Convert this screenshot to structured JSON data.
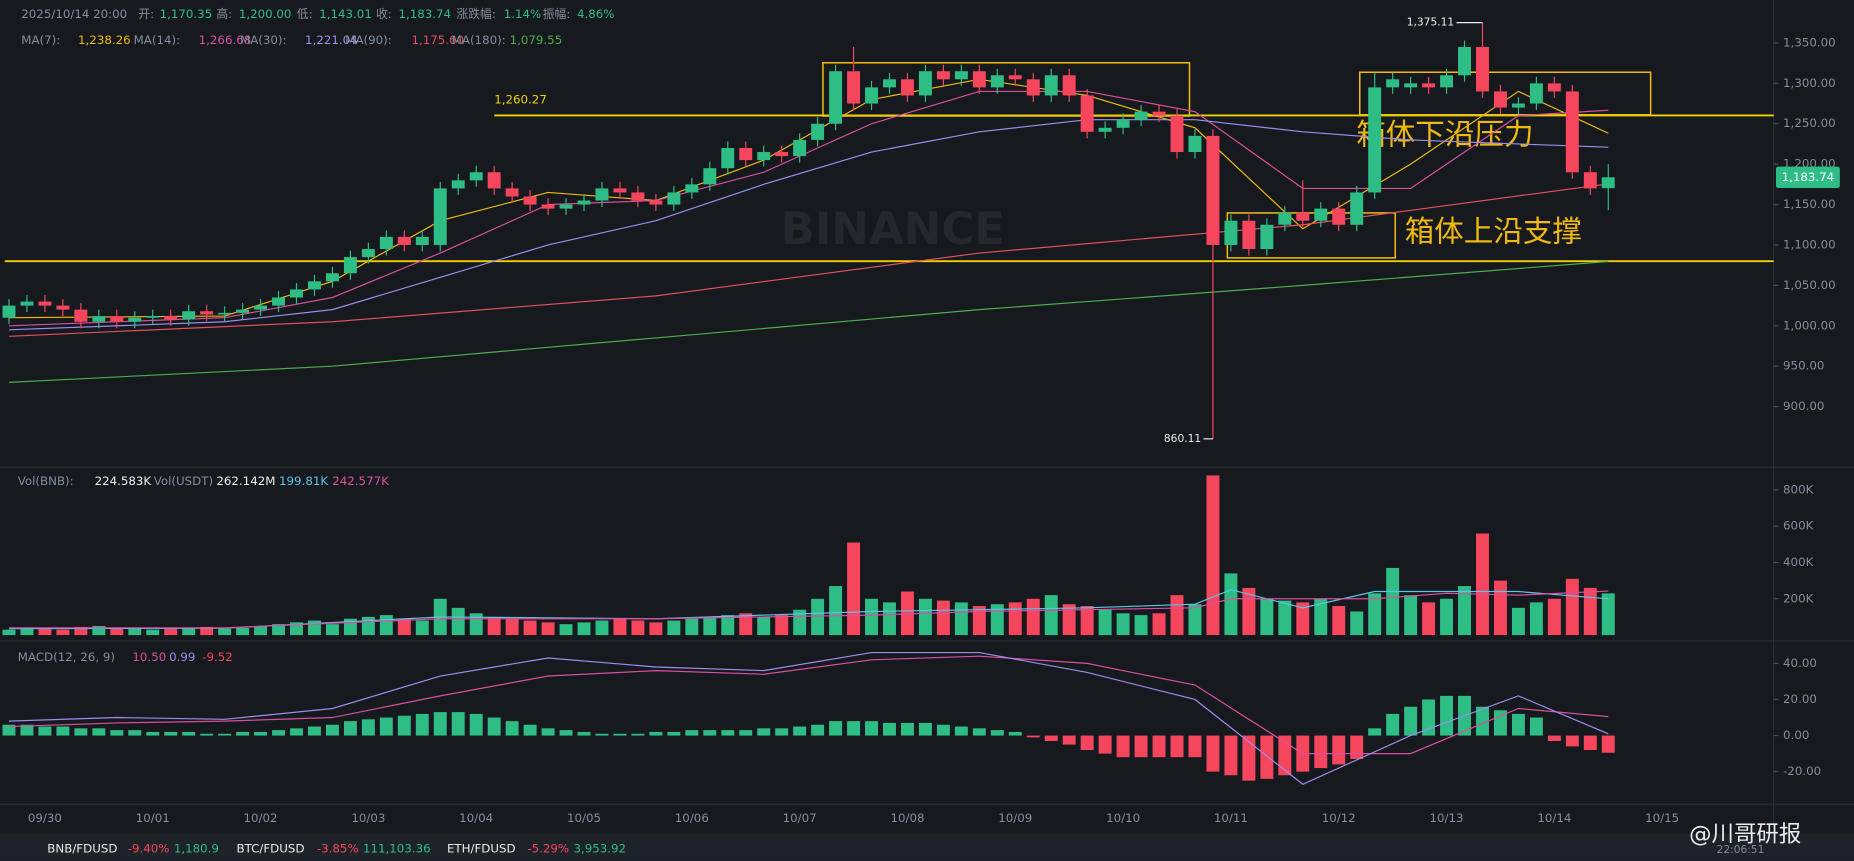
{
  "chart_data": {
    "type": "candlestick",
    "header": {
      "time": "2025/10/14 20:00",
      "open_label": "开:",
      "open": "1,170.35",
      "high_label": "高:",
      "high": "1,200.00",
      "low_label": "低:",
      "low": "1,143.01",
      "close_label": "收:",
      "close": "1,183.74",
      "change_label": "涨跌幅:",
      "change": "1.14%",
      "amp_label": "振幅:",
      "amp": "4.86%"
    },
    "up_color": "#2ebd85",
    "down_color": "#f6465d",
    "xlim": [
      -0.5,
      98.2
    ],
    "xticks": [
      {
        "value": 2,
        "label": "09/30"
      },
      {
        "value": 8,
        "label": "10/01"
      },
      {
        "value": 14,
        "label": "10/02"
      },
      {
        "value": 20,
        "label": "10/03"
      },
      {
        "value": 26,
        "label": "10/04"
      },
      {
        "value": 32,
        "label": "10/05"
      },
      {
        "value": 38,
        "label": "10/06"
      },
      {
        "value": 44,
        "label": "10/07"
      },
      {
        "value": 50,
        "label": "10/08"
      },
      {
        "value": 56,
        "label": "10/09"
      },
      {
        "value": 62,
        "label": "10/10"
      },
      {
        "value": 68,
        "label": "10/11"
      },
      {
        "value": 74,
        "label": "10/12"
      },
      {
        "value": 80,
        "label": "10/13"
      },
      {
        "value": 86,
        "label": "10/14"
      },
      {
        "value": 92,
        "label": "10/15"
      }
    ],
    "ylim": [
      828,
      1403
    ],
    "yticks": [
      {
        "value": 900,
        "label": "900.00"
      },
      {
        "value": 950,
        "label": "950.00"
      },
      {
        "value": 1000,
        "label": "1,000.00"
      },
      {
        "value": 1050,
        "label": "1,050.00"
      },
      {
        "value": 1100,
        "label": "1,100.00"
      },
      {
        "value": 1150,
        "label": "1,150.00"
      },
      {
        "value": 1200,
        "label": "1,200.00"
      },
      {
        "value": 1250,
        "label": "1,250.00"
      },
      {
        "value": 1300,
        "label": "1,300.00"
      },
      {
        "value": 1350,
        "label": "1,350.00"
      }
    ],
    "open": [
      1010,
      1025,
      1030,
      1025,
      1020,
      1005,
      1012,
      1005,
      1010,
      1012,
      1008,
      1018,
      1014,
      1016,
      1020,
      1025,
      1035,
      1045,
      1055,
      1065,
      1085,
      1095,
      1110,
      1100,
      1100,
      1170,
      1180,
      1190,
      1170,
      1160,
      1150,
      1145,
      1150,
      1155,
      1170,
      1165,
      1155,
      1150,
      1165,
      1175,
      1195,
      1220,
      1205,
      1215,
      1210,
      1230,
      1250,
      1315,
      1275,
      1295,
      1305,
      1285,
      1315,
      1305,
      1315,
      1295,
      1310,
      1305,
      1285,
      1310,
      1285,
      1240,
      1245,
      1255,
      1265,
      1260,
      1215,
      1235,
      1100,
      1130,
      1095,
      1125,
      1140,
      1130,
      1145,
      1125,
      1165,
      1295,
      1295,
      1300,
      1295,
      1310,
      1345,
      1290,
      1270,
      1275,
      1300,
      1290,
      1190,
      1170.35
    ],
    "high": [
      1033,
      1038,
      1038,
      1033,
      1028,
      1020,
      1020,
      1018,
      1020,
      1020,
      1026,
      1026,
      1024,
      1028,
      1033,
      1043,
      1053,
      1063,
      1073,
      1093,
      1103,
      1118,
      1118,
      1118,
      1178,
      1188,
      1198,
      1198,
      1178,
      1168,
      1158,
      1158,
      1163,
      1178,
      1178,
      1173,
      1163,
      1173,
      1183,
      1203,
      1228,
      1228,
      1223,
      1223,
      1238,
      1258,
      1323,
      1345,
      1303,
      1313,
      1313,
      1323,
      1323,
      1323,
      1323,
      1318,
      1318,
      1313,
      1318,
      1318,
      1293,
      1253,
      1263,
      1273,
      1273,
      1268,
      1243,
      1243,
      1138,
      1138,
      1133,
      1148,
      1180,
      1153,
      1153,
      1173,
      1313,
      1313,
      1308,
      1308,
      1318,
      1353,
      1375.11,
      1298,
      1283,
      1308,
      1308,
      1298,
      1198,
      1200
    ],
    "low": [
      1002,
      1017,
      1017,
      1012,
      997,
      997,
      997,
      997,
      1002,
      1000,
      1000,
      1006,
      1006,
      1008,
      1012,
      1017,
      1027,
      1037,
      1047,
      1057,
      1077,
      1087,
      1092,
      1092,
      1092,
      1162,
      1172,
      1162,
      1152,
      1142,
      1137,
      1137,
      1142,
      1147,
      1157,
      1147,
      1142,
      1142,
      1157,
      1167,
      1187,
      1197,
      1197,
      1202,
      1202,
      1222,
      1242,
      1267,
      1267,
      1287,
      1277,
      1277,
      1297,
      1297,
      1287,
      1287,
      1297,
      1277,
      1277,
      1277,
      1232,
      1232,
      1237,
      1247,
      1252,
      1207,
      1207,
      860.11,
      1092,
      1087,
      1087,
      1117,
      1122,
      1122,
      1117,
      1117,
      1157,
      1287,
      1287,
      1287,
      1287,
      1302,
      1282,
      1262,
      1262,
      1267,
      1282,
      1182,
      1162,
      1143.01
    ],
    "close": [
      1025,
      1030,
      1025,
      1020,
      1005,
      1012,
      1005,
      1010,
      1012,
      1008,
      1018,
      1014,
      1016,
      1020,
      1025,
      1035,
      1045,
      1055,
      1065,
      1085,
      1095,
      1110,
      1100,
      1110,
      1170,
      1180,
      1190,
      1170,
      1160,
      1150,
      1145,
      1150,
      1155,
      1170,
      1165,
      1155,
      1150,
      1165,
      1175,
      1195,
      1220,
      1205,
      1215,
      1210,
      1230,
      1250,
      1315,
      1275,
      1295,
      1305,
      1285,
      1315,
      1305,
      1315,
      1295,
      1310,
      1305,
      1285,
      1310,
      1285,
      1240,
      1245,
      1255,
      1265,
      1260,
      1215,
      1235,
      1100,
      1130,
      1095,
      1125,
      1140,
      1130,
      1145,
      1125,
      1165,
      1295,
      1305,
      1300,
      1295,
      1310,
      1345,
      1290,
      1270,
      1275,
      1300,
      1290,
      1190,
      1170,
      1183.74
    ],
    "high_label": "1,375.11",
    "low_label": "860.11",
    "last_label": "1,183.74",
    "ma": [
      {
        "name": "MA(7):",
        "color": "#f0b90b",
        "last_label": "1,238.26",
        "x": [
          0,
          12,
          18,
          24,
          30,
          36,
          42,
          48,
          54,
          60,
          66,
          72,
          78,
          84,
          89
        ],
        "values": [
          1010,
          1012,
          1055,
          1130,
          1165,
          1155,
          1205,
          1280,
          1305,
          1285,
          1245,
          1120,
          1200,
          1290,
          1238.26
        ]
      },
      {
        "name": "MA(14):",
        "color": "#d9509e",
        "last_label": "1,266.68",
        "x": [
          0,
          12,
          18,
          24,
          30,
          36,
          42,
          48,
          54,
          60,
          66,
          72,
          78,
          84,
          89
        ],
        "values": [
          1000,
          1010,
          1035,
          1090,
          1150,
          1155,
          1190,
          1250,
          1290,
          1290,
          1265,
          1170,
          1170,
          1260,
          1266.68
        ]
      },
      {
        "name": "MA(30):",
        "color": "#9d8cf0",
        "last_label": "1,221.04",
        "x": [
          0,
          12,
          18,
          24,
          30,
          36,
          42,
          48,
          54,
          60,
          66,
          72,
          78,
          84,
          89
        ],
        "values": [
          995,
          1005,
          1020,
          1060,
          1100,
          1130,
          1175,
          1215,
          1240,
          1255,
          1255,
          1240,
          1230,
          1225,
          1221.04
        ]
      },
      {
        "name": "MA(90):",
        "color": "#e0505e",
        "last_label": "1,175.60",
        "x": [
          0,
          18,
          36,
          54,
          72,
          89
        ],
        "values": [
          987,
          1005,
          1037,
          1090,
          1125,
          1175.6
        ]
      },
      {
        "name": "MA(180):",
        "color": "#4cae4f",
        "last_label": "1,079.55",
        "x": [
          0,
          18,
          36,
          54,
          72,
          89
        ],
        "values": [
          930,
          950,
          985,
          1020,
          1050,
          1079.55
        ]
      }
    ],
    "hlines": [
      {
        "value": 1260.27,
        "label": "1,260.27"
      },
      {
        "value": 1080
      }
    ],
    "annotations": [
      "箱体下沿压力",
      "箱体上沿支撑"
    ],
    "watermark": "BINANCE",
    "volume": {
      "legend": [
        "Vol(BNB):",
        "224.583K",
        "Vol(USDT)",
        "262.142M"
      ],
      "ylim": [
        0,
        880
      ],
      "yticks": [
        {
          "value": 200,
          "label": "200K"
        },
        {
          "value": 400,
          "label": "400K"
        },
        {
          "value": 600,
          "label": "600K"
        },
        {
          "value": 800,
          "label": "800K"
        }
      ],
      "values": [
        30,
        40,
        35,
        30,
        45,
        50,
        40,
        35,
        30,
        35,
        40,
        45,
        35,
        40,
        50,
        60,
        70,
        80,
        60,
        90,
        100,
        110,
        90,
        80,
        200,
        150,
        120,
        100,
        90,
        80,
        70,
        60,
        70,
        80,
        90,
        80,
        70,
        80,
        90,
        100,
        110,
        120,
        100,
        110,
        140,
        200,
        270,
        510,
        200,
        180,
        240,
        200,
        190,
        180,
        160,
        170,
        180,
        200,
        220,
        170,
        160,
        140,
        120,
        110,
        120,
        220,
        170,
        880,
        340,
        260,
        200,
        190,
        180,
        200,
        160,
        130,
        230,
        370,
        220,
        180,
        200,
        270,
        560,
        300,
        150,
        180,
        200,
        310,
        260,
        230
      ],
      "ma": [
        {
          "color": "#5fc4e8",
          "last_label": "199.81K",
          "x": [
            0,
            12,
            24,
            36,
            48,
            54,
            60,
            66,
            68,
            72,
            76,
            80,
            84,
            89
          ],
          "values": [
            35,
            38,
            100,
            90,
            130,
            140,
            150,
            170,
            250,
            150,
            240,
            240,
            240,
            199.81
          ]
        },
        {
          "color": "#d9509e",
          "last_label": "242.577K",
          "x": [
            0,
            12,
            24,
            36,
            48,
            54,
            60,
            66,
            68,
            72,
            76,
            80,
            84,
            89
          ],
          "values": [
            40,
            40,
            90,
            90,
            110,
            130,
            140,
            150,
            200,
            200,
            200,
            230,
            220,
            242.577
          ]
        }
      ]
    },
    "macd": {
      "name": "MACD(12, 26, 9)",
      "ylim": [
        -36.7,
        48.5
      ],
      "yticks": [
        {
          "value": -20,
          "label": "-20.00"
        },
        {
          "value": 0,
          "label": "0.00"
        },
        {
          "value": 20,
          "label": "20.00"
        },
        {
          "value": 40,
          "label": "40.00"
        }
      ],
      "hist": [
        6,
        6,
        5,
        5,
        4,
        4,
        3,
        3,
        2,
        2,
        2,
        1,
        1,
        2,
        2,
        3,
        4,
        5,
        6,
        8,
        9,
        10,
        11,
        12,
        13,
        13,
        12,
        10,
        8,
        6,
        4,
        3,
        2,
        1,
        1,
        1,
        2,
        2,
        3,
        3,
        3,
        3,
        4,
        4,
        5,
        6,
        8,
        8,
        8,
        7,
        7,
        7,
        6,
        5,
        4,
        3,
        2,
        -1,
        -3,
        -5,
        -8,
        -10,
        -12,
        -12,
        -12,
        -12,
        -12,
        -20,
        -22,
        -25,
        -24,
        -22,
        -20,
        -18,
        -16,
        -13,
        4,
        12,
        16,
        20,
        22,
        22,
        16,
        14,
        12,
        10,
        -3,
        -6,
        -8,
        -9.52
      ],
      "hist_label": "-9.52",
      "lines": [
        {
          "color": "#d9509e",
          "last_label": "10.50",
          "x": [
            0,
            6,
            12,
            18,
            24,
            30,
            36,
            42,
            48,
            54,
            60,
            66,
            72,
            78,
            84,
            89
          ],
          "values": [
            5,
            7,
            8,
            10,
            22,
            33,
            36,
            34,
            42,
            44,
            40,
            28,
            -10,
            -10,
            15,
            10.5
          ]
        },
        {
          "color": "#9d8cf0",
          "last_label": "0.99",
          "x": [
            0,
            6,
            12,
            18,
            24,
            30,
            36,
            42,
            48,
            54,
            60,
            66,
            72,
            78,
            84,
            89
          ],
          "values": [
            8,
            10,
            9,
            15,
            33,
            43,
            38,
            36,
            46,
            46,
            35,
            20,
            -27,
            0,
            22,
            0.99
          ]
        }
      ]
    },
    "footer": [
      {
        "pair": "BNB/FDUSD",
        "change": "-9.40%",
        "price": "1,180.9"
      },
      {
        "pair": "BTC/FDUSD",
        "change": "-3.85%",
        "price": "111,103.36"
      },
      {
        "pair": "ETH/FDUSD",
        "change": "-5.29%",
        "price": "3,953.92"
      }
    ],
    "brand": "@川哥研报",
    "clock": "22:06:51"
  }
}
